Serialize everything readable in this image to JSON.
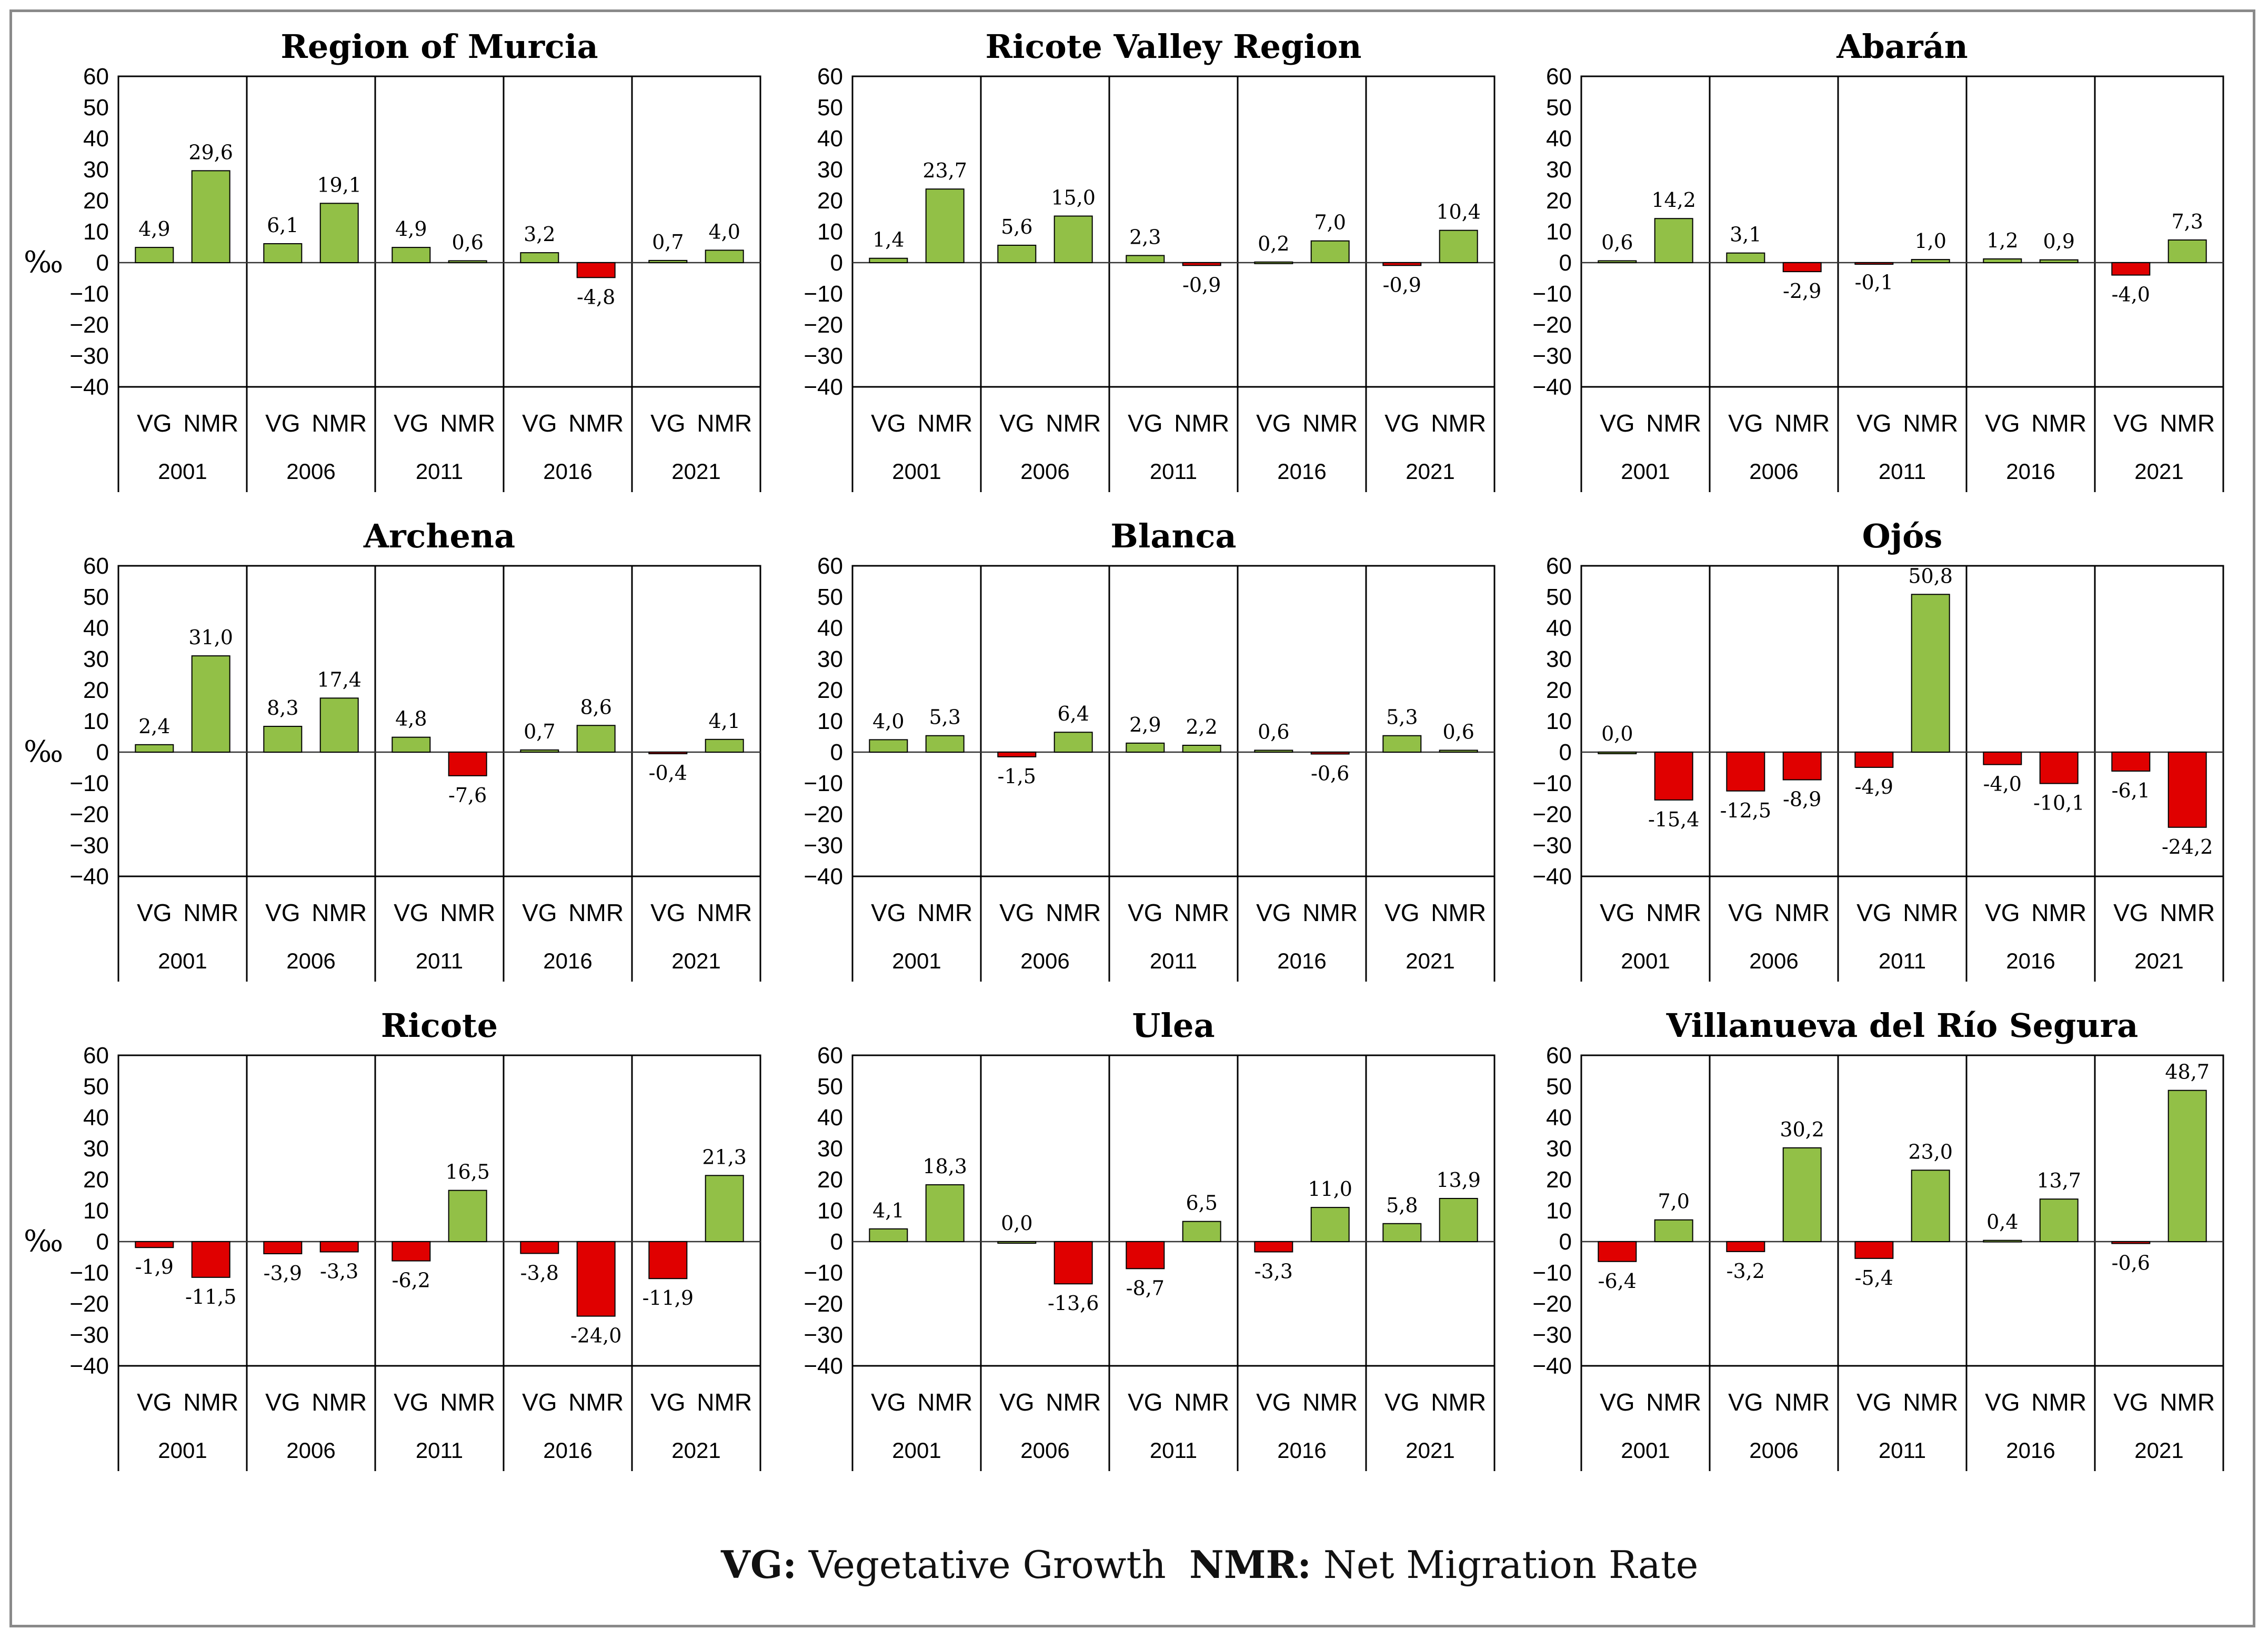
{
  "percent_symbol": "‰",
  "legend": {
    "vg_abbr": "VG:",
    "vg_text": "Vegetative Growth",
    "nmr_abbr": "NMR:",
    "nmr_text": "Net Migration Rate"
  },
  "colors": {
    "positive": "#92c047",
    "negative": "#e00000",
    "grid": "#000000"
  },
  "chart_data": [
    {
      "type": "bar",
      "title": "Region of Murcia",
      "ylabel": "‰",
      "ylim": [
        -40,
        60
      ],
      "yticks": [
        60,
        50,
        40,
        30,
        20,
        10,
        0,
        -10,
        -20,
        -30,
        -40
      ],
      "categories": [
        "2001",
        "2006",
        "2011",
        "2016",
        "2021"
      ],
      "subcategories": [
        "VG",
        "NMR"
      ],
      "values": [
        [
          4.9,
          29.6
        ],
        [
          6.1,
          19.1
        ],
        [
          4.9,
          0.6
        ],
        [
          3.2,
          -4.8
        ],
        [
          0.7,
          4.0
        ]
      ],
      "labels": [
        [
          "4,9",
          "29,6"
        ],
        [
          "6,1",
          "19,1"
        ],
        [
          "4,9",
          "0,6"
        ],
        [
          "3,2",
          "-4,8"
        ],
        [
          "0,7",
          "4,0"
        ]
      ]
    },
    {
      "type": "bar",
      "title": "Ricote Valley Region",
      "ylabel": "",
      "ylim": [
        -40,
        60
      ],
      "yticks": [
        60,
        50,
        40,
        30,
        20,
        10,
        0,
        -10,
        -20,
        -30,
        -40
      ],
      "categories": [
        "2001",
        "2006",
        "2011",
        "2016",
        "2021"
      ],
      "subcategories": [
        "VG",
        "NMR"
      ],
      "values": [
        [
          1.4,
          23.7
        ],
        [
          5.6,
          15.0
        ],
        [
          2.3,
          -0.9
        ],
        [
          0.2,
          7.0
        ],
        [
          -0.9,
          10.4
        ]
      ],
      "labels": [
        [
          "1,4",
          "23,7"
        ],
        [
          "5,6",
          "15,0"
        ],
        [
          "2,3",
          "-0,9"
        ],
        [
          "0,2",
          "7,0"
        ],
        [
          "-0,9",
          "10,4"
        ]
      ]
    },
    {
      "type": "bar",
      "title": "Abarán",
      "ylabel": "",
      "ylim": [
        -40,
        60
      ],
      "yticks": [
        60,
        50,
        40,
        30,
        20,
        10,
        0,
        -10,
        -20,
        -30,
        -40
      ],
      "categories": [
        "2001",
        "2006",
        "2011",
        "2016",
        "2021"
      ],
      "subcategories": [
        "VG",
        "NMR"
      ],
      "values": [
        [
          0.6,
          14.2
        ],
        [
          3.1,
          -2.9
        ],
        [
          -0.1,
          1.0
        ],
        [
          1.2,
          0.9
        ],
        [
          -4.0,
          7.3
        ]
      ],
      "labels": [
        [
          "0,6",
          "14,2"
        ],
        [
          "3,1",
          "-2,9"
        ],
        [
          "-0,1",
          "1,0"
        ],
        [
          "1,2",
          "0,9"
        ],
        [
          "-4,0",
          "7,3"
        ]
      ]
    },
    {
      "type": "bar",
      "title": "Archena",
      "ylabel": "‰",
      "ylim": [
        -40,
        60
      ],
      "yticks": [
        60,
        50,
        40,
        30,
        20,
        10,
        0,
        -10,
        -20,
        -30,
        -40
      ],
      "categories": [
        "2001",
        "2006",
        "2011",
        "2016",
        "2021"
      ],
      "subcategories": [
        "VG",
        "NMR"
      ],
      "values": [
        [
          2.4,
          31.0
        ],
        [
          8.3,
          17.4
        ],
        [
          4.8,
          -7.6
        ],
        [
          0.7,
          8.6
        ],
        [
          -0.4,
          4.1
        ]
      ],
      "labels": [
        [
          "2,4",
          "31,0"
        ],
        [
          "8,3",
          "17,4"
        ],
        [
          "4,8",
          "-7,6"
        ],
        [
          "0,7",
          "8,6"
        ],
        [
          "-0,4",
          "4,1"
        ]
      ]
    },
    {
      "type": "bar",
      "title": "Blanca",
      "ylabel": "",
      "ylim": [
        -40,
        60
      ],
      "yticks": [
        60,
        50,
        40,
        30,
        20,
        10,
        0,
        -10,
        -20,
        -30,
        -40
      ],
      "categories": [
        "2001",
        "2006",
        "2011",
        "2016",
        "2021"
      ],
      "subcategories": [
        "VG",
        "NMR"
      ],
      "values": [
        [
          4.0,
          5.3
        ],
        [
          -1.5,
          6.4
        ],
        [
          2.9,
          2.2
        ],
        [
          0.6,
          -0.6
        ],
        [
          5.3,
          0.6
        ]
      ],
      "labels": [
        [
          "4,0",
          "5,3"
        ],
        [
          "-1,5",
          "6,4"
        ],
        [
          "2,9",
          "2,2"
        ],
        [
          "0,6",
          "-0,6"
        ],
        [
          "5,3",
          "0,6"
        ]
      ]
    },
    {
      "type": "bar",
      "title": "Ojós",
      "ylabel": "",
      "ylim": [
        -40,
        60
      ],
      "yticks": [
        60,
        50,
        40,
        30,
        20,
        10,
        0,
        -10,
        -20,
        -30,
        -40
      ],
      "categories": [
        "2001",
        "2006",
        "2011",
        "2016",
        "2021"
      ],
      "subcategories": [
        "VG",
        "NMR"
      ],
      "values": [
        [
          0.0,
          -15.4
        ],
        [
          -12.5,
          -8.9
        ],
        [
          -4.9,
          50.8
        ],
        [
          -4.0,
          -10.1
        ],
        [
          -6.1,
          -24.2
        ]
      ],
      "labels": [
        [
          "0,0",
          "-15,4"
        ],
        [
          "-12,5",
          "-8,9"
        ],
        [
          "-4,9",
          "50,8"
        ],
        [
          "-4,0",
          "-10,1"
        ],
        [
          "-6,1",
          "-24,2"
        ]
      ]
    },
    {
      "type": "bar",
      "title": "Ricote",
      "ylabel": "‰",
      "ylim": [
        -40,
        60
      ],
      "yticks": [
        60,
        50,
        40,
        30,
        20,
        10,
        0,
        -10,
        -20,
        -30,
        -40
      ],
      "categories": [
        "2001",
        "2006",
        "2011",
        "2016",
        "2021"
      ],
      "subcategories": [
        "VG",
        "NMR"
      ],
      "values": [
        [
          -1.9,
          -11.5
        ],
        [
          -3.9,
          -3.3
        ],
        [
          -6.2,
          16.5
        ],
        [
          -3.8,
          -24.0
        ],
        [
          -11.9,
          21.3
        ]
      ],
      "labels": [
        [
          "-1,9",
          "-11,5"
        ],
        [
          "-3,9",
          "-3,3"
        ],
        [
          "-6,2",
          "16,5"
        ],
        [
          "-3,8",
          "-24,0"
        ],
        [
          "-11,9",
          "21,3"
        ]
      ]
    },
    {
      "type": "bar",
      "title": "Ulea",
      "ylabel": "",
      "ylim": [
        -40,
        60
      ],
      "yticks": [
        60,
        50,
        40,
        30,
        20,
        10,
        0,
        -10,
        -20,
        -30,
        -40
      ],
      "categories": [
        "2001",
        "2006",
        "2011",
        "2016",
        "2021"
      ],
      "subcategories": [
        "VG",
        "NMR"
      ],
      "values": [
        [
          4.1,
          18.3
        ],
        [
          0.0,
          -13.6
        ],
        [
          -8.7,
          6.5
        ],
        [
          -3.3,
          11.0
        ],
        [
          5.8,
          13.9
        ]
      ],
      "labels": [
        [
          "4,1",
          "18,3"
        ],
        [
          "0,0",
          "-13,6"
        ],
        [
          "-8,7",
          "6,5"
        ],
        [
          "-3,3",
          "11,0"
        ],
        [
          "5,8",
          "13,9"
        ]
      ]
    },
    {
      "type": "bar",
      "title": "Villanueva del Río Segura",
      "ylabel": "",
      "ylim": [
        -40,
        60
      ],
      "yticks": [
        60,
        50,
        40,
        30,
        20,
        10,
        0,
        -10,
        -20,
        -30,
        -40
      ],
      "categories": [
        "2001",
        "2006",
        "2011",
        "2016",
        "2021"
      ],
      "subcategories": [
        "VG",
        "NMR"
      ],
      "values": [
        [
          -6.4,
          7.0
        ],
        [
          -3.2,
          30.2
        ],
        [
          -5.4,
          23.0
        ],
        [
          0.4,
          13.7
        ],
        [
          -0.6,
          48.7
        ]
      ],
      "labels": [
        [
          "-6,4",
          "7,0"
        ],
        [
          "-3,2",
          "30,2"
        ],
        [
          "-5,4",
          "23,0"
        ],
        [
          "0,4",
          "13,7"
        ],
        [
          "-0,6",
          "48,7"
        ]
      ]
    }
  ]
}
